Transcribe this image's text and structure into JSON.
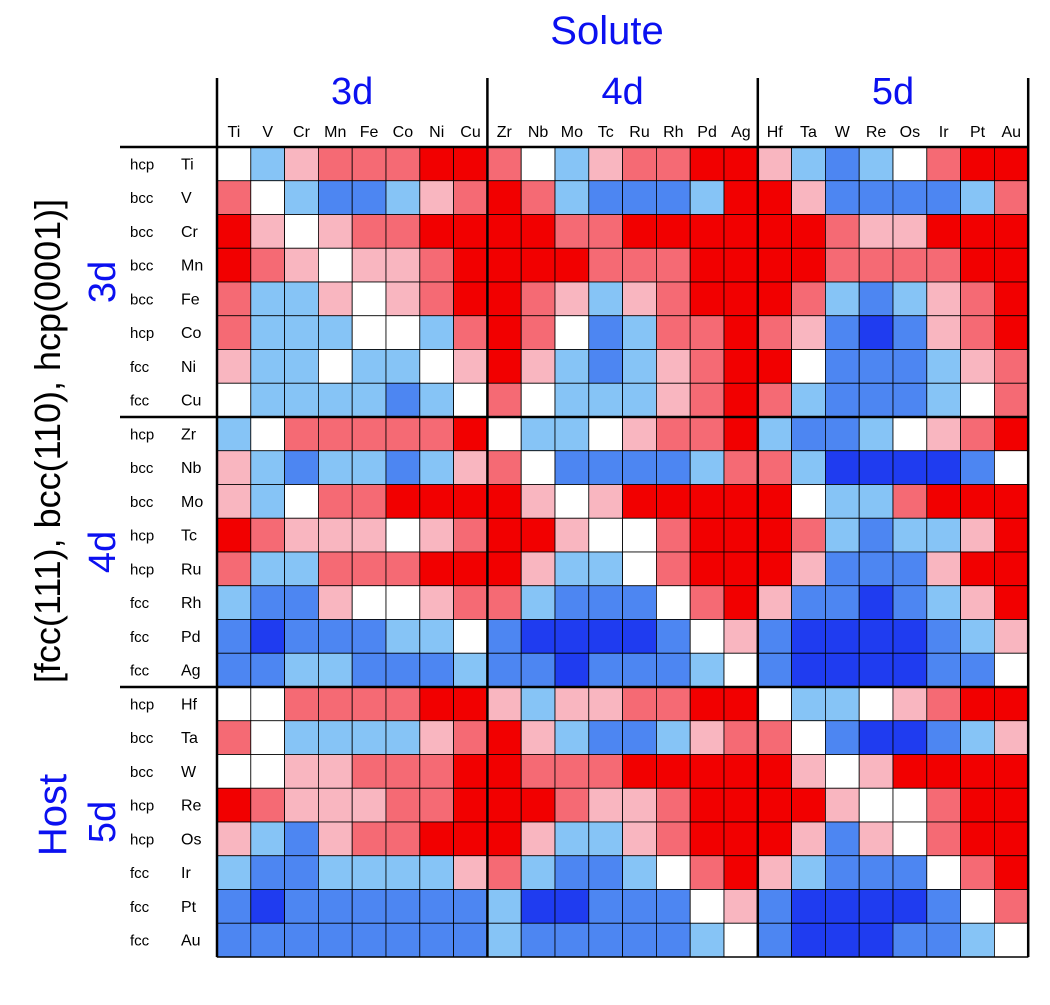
{
  "colors": {
    "palette": [
      "#1f3cf0",
      "#4d86f2",
      "#86c4f6",
      "#ffffff",
      "#f9b6c0",
      "#f56a74",
      "#f20000"
    ],
    "label_blue": "#0b10f0",
    "grid_line": "#000000"
  },
  "chart_data": {
    "type": "heatmap",
    "title": "Solute",
    "ylabel": "[fcc(111), bcc(110), hcp(0001)]",
    "host_label": "Host",
    "column_groups": [
      "3d",
      "4d",
      "5d"
    ],
    "row_groups": [
      "3d",
      "4d",
      "5d"
    ],
    "solutes": [
      "Ti",
      "V",
      "Cr",
      "Mn",
      "Fe",
      "Co",
      "Ni",
      "Cu",
      "Zr",
      "Nb",
      "Mo",
      "Tc",
      "Ru",
      "Rh",
      "Pd",
      "Ag",
      "Hf",
      "Ta",
      "W",
      "Re",
      "Os",
      "Ir",
      "Pt",
      "Au"
    ],
    "hosts": [
      "Ti",
      "V",
      "Cr",
      "Mn",
      "Fe",
      "Co",
      "Ni",
      "Cu",
      "Zr",
      "Nb",
      "Mo",
      "Tc",
      "Ru",
      "Rh",
      "Pd",
      "Ag",
      "Hf",
      "Ta",
      "W",
      "Re",
      "Os",
      "Ir",
      "Pt",
      "Au"
    ],
    "host_structures": [
      "hcp",
      "bcc",
      "bcc",
      "bcc",
      "bcc",
      "hcp",
      "fcc",
      "fcc",
      "hcp",
      "bcc",
      "bcc",
      "hcp",
      "hcp",
      "fcc",
      "fcc",
      "fcc",
      "hcp",
      "bcc",
      "bcc",
      "hcp",
      "hcp",
      "fcc",
      "fcc",
      "fcc"
    ],
    "color_scale": "diverging blue-white-red, level -3 (dark blue) to +3 (red)",
    "values": [
      [
        0,
        -1,
        1,
        2,
        2,
        2,
        3,
        3,
        2,
        0,
        -1,
        1,
        2,
        2,
        3,
        3,
        1,
        -1,
        -2,
        -1,
        0,
        2,
        3,
        3
      ],
      [
        2,
        0,
        -1,
        -2,
        -2,
        -1,
        1,
        2,
        3,
        2,
        -1,
        -2,
        -2,
        -2,
        -1,
        3,
        3,
        1,
        -2,
        -2,
        -2,
        -2,
        -1,
        2
      ],
      [
        3,
        1,
        0,
        1,
        2,
        2,
        3,
        3,
        3,
        3,
        2,
        2,
        3,
        3,
        3,
        3,
        3,
        3,
        2,
        1,
        1,
        3,
        3,
        3
      ],
      [
        3,
        2,
        1,
        0,
        1,
        1,
        2,
        3,
        3,
        3,
        3,
        2,
        2,
        2,
        3,
        3,
        3,
        3,
        2,
        2,
        2,
        2,
        3,
        3
      ],
      [
        2,
        -1,
        -1,
        1,
        0,
        1,
        2,
        3,
        3,
        2,
        1,
        -1,
        1,
        2,
        3,
        3,
        3,
        2,
        -1,
        -2,
        -1,
        1,
        2,
        3
      ],
      [
        2,
        -1,
        -1,
        -1,
        0,
        0,
        -1,
        2,
        3,
        2,
        0,
        -2,
        -1,
        2,
        2,
        3,
        2,
        1,
        -2,
        -3,
        -2,
        1,
        2,
        3
      ],
      [
        1,
        -1,
        -1,
        0,
        -1,
        -1,
        0,
        1,
        3,
        1,
        -1,
        -2,
        -1,
        1,
        2,
        3,
        3,
        0,
        -2,
        -2,
        -2,
        -1,
        1,
        2
      ],
      [
        0,
        -1,
        -1,
        -1,
        -1,
        -2,
        -1,
        0,
        2,
        0,
        -1,
        -1,
        -1,
        1,
        2,
        3,
        2,
        -1,
        -2,
        -2,
        -2,
        -1,
        0,
        2
      ],
      [
        -1,
        0,
        2,
        2,
        2,
        2,
        2,
        3,
        0,
        -1,
        -1,
        0,
        1,
        2,
        2,
        3,
        -1,
        -2,
        -2,
        -1,
        0,
        1,
        2,
        3
      ],
      [
        1,
        -1,
        -2,
        -1,
        -1,
        -2,
        -1,
        1,
        2,
        0,
        -2,
        -2,
        -2,
        -2,
        -1,
        2,
        2,
        -1,
        -3,
        -3,
        -3,
        -3,
        -2,
        0
      ],
      [
        1,
        -1,
        0,
        2,
        2,
        3,
        3,
        3,
        3,
        1,
        0,
        1,
        3,
        3,
        3,
        3,
        3,
        0,
        -1,
        -1,
        2,
        3,
        3,
        3
      ],
      [
        3,
        2,
        1,
        1,
        1,
        0,
        1,
        2,
        3,
        3,
        1,
        0,
        0,
        2,
        3,
        3,
        3,
        2,
        -1,
        -2,
        -1,
        -1,
        1,
        3
      ],
      [
        2,
        -1,
        -1,
        2,
        2,
        2,
        3,
        3,
        3,
        1,
        -1,
        -1,
        0,
        2,
        3,
        3,
        3,
        1,
        -2,
        -2,
        -2,
        1,
        3,
        3
      ],
      [
        -1,
        -2,
        -2,
        1,
        0,
        0,
        1,
        2,
        2,
        -1,
        -2,
        -2,
        -2,
        0,
        2,
        3,
        1,
        -2,
        -2,
        -3,
        -2,
        -1,
        1,
        3
      ],
      [
        -2,
        -3,
        -2,
        -2,
        -2,
        -1,
        -1,
        0,
        -2,
        -3,
        -3,
        -3,
        -3,
        -2,
        0,
        1,
        -2,
        -3,
        -3,
        -3,
        -3,
        -2,
        -1,
        1
      ],
      [
        -2,
        -2,
        -1,
        -1,
        -2,
        -2,
        -2,
        -1,
        -2,
        -2,
        -3,
        -2,
        -2,
        -2,
        -1,
        0,
        -2,
        -3,
        -3,
        -3,
        -3,
        -2,
        -2,
        0
      ],
      [
        0,
        0,
        2,
        2,
        2,
        2,
        3,
        3,
        1,
        -1,
        1,
        1,
        2,
        2,
        3,
        3,
        0,
        -1,
        -1,
        0,
        1,
        2,
        3,
        3
      ],
      [
        2,
        0,
        -1,
        -1,
        -1,
        -1,
        1,
        2,
        3,
        1,
        -1,
        -2,
        -2,
        -1,
        1,
        2,
        2,
        0,
        -2,
        -3,
        -3,
        -2,
        -1,
        1
      ],
      [
        0,
        0,
        1,
        1,
        2,
        2,
        2,
        3,
        3,
        2,
        2,
        2,
        3,
        3,
        3,
        3,
        3,
        1,
        0,
        1,
        3,
        3,
        3,
        3
      ],
      [
        3,
        2,
        1,
        1,
        1,
        2,
        2,
        3,
        3,
        3,
        2,
        1,
        1,
        2,
        3,
        3,
        3,
        3,
        1,
        0,
        0,
        2,
        3,
        3
      ],
      [
        1,
        -1,
        -2,
        1,
        2,
        2,
        3,
        3,
        3,
        1,
        -1,
        -1,
        1,
        2,
        3,
        3,
        3,
        1,
        -2,
        1,
        0,
        2,
        3,
        3
      ],
      [
        -1,
        -2,
        -2,
        -1,
        -1,
        -1,
        -1,
        1,
        2,
        -1,
        -2,
        -2,
        -1,
        0,
        2,
        3,
        1,
        -1,
        -2,
        -2,
        -2,
        0,
        2,
        3
      ],
      [
        -2,
        -3,
        -2,
        -2,
        -2,
        -2,
        -2,
        -2,
        -1,
        -3,
        -3,
        -2,
        -2,
        -2,
        0,
        1,
        -2,
        -3,
        -3,
        -3,
        -3,
        -2,
        0,
        2
      ],
      [
        -2,
        -2,
        -2,
        -2,
        -2,
        -2,
        -2,
        -2,
        -1,
        -2,
        -2,
        -2,
        -2,
        -2,
        -1,
        0,
        -2,
        -3,
        -3,
        -3,
        -2,
        -2,
        -1,
        0
      ]
    ]
  }
}
